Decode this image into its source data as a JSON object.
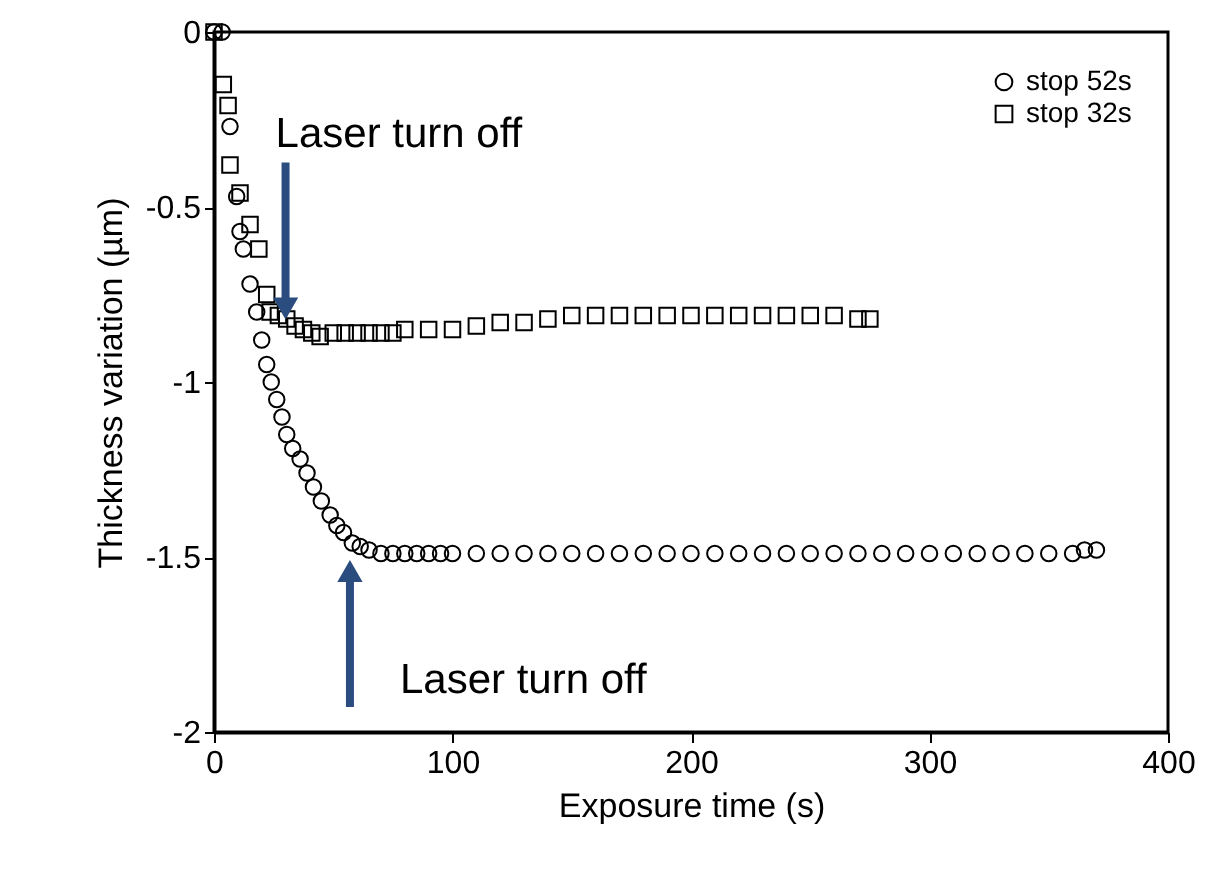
{
  "chart_data": {
    "type": "scatter",
    "xlabel": "Exposure time (s)",
    "ylabel": "Thickness variation (µm)",
    "xlim": [
      0,
      400
    ],
    "xticks": [
      0,
      100,
      200,
      300,
      400
    ],
    "ylim": [
      -2,
      0
    ],
    "yticks": [
      -2,
      -1.5,
      -1,
      -0.5,
      0
    ],
    "grid": false,
    "legend": "top right",
    "series": [
      {
        "name": "stop 52s",
        "color": "#000000",
        "marker": "circle",
        "x": [
          0,
          3.4,
          6.7,
          9.5,
          10.9,
          12.3,
          15.1,
          17.9,
          20,
          22.1,
          24,
          26.3,
          28.5,
          30.5,
          33,
          36.1,
          39,
          41.7,
          45,
          48.7,
          51.5,
          54.3,
          58,
          61.3,
          65,
          70,
          75,
          80,
          85,
          90,
          95,
          100,
          110,
          120,
          130,
          140,
          150,
          160,
          170,
          180,
          190,
          200,
          210,
          220,
          230,
          240,
          250,
          260,
          270,
          280,
          290,
          300,
          310,
          320,
          330,
          340,
          350,
          360,
          365,
          370
        ],
        "values": [
          0,
          0,
          -0.27,
          -0.47,
          -0.57,
          -0.62,
          -0.72,
          -0.8,
          -0.88,
          -0.95,
          -1.0,
          -1.05,
          -1.1,
          -1.15,
          -1.19,
          -1.22,
          -1.26,
          -1.3,
          -1.34,
          -1.38,
          -1.41,
          -1.43,
          -1.46,
          -1.47,
          -1.48,
          -1.49,
          -1.49,
          -1.49,
          -1.49,
          -1.49,
          -1.49,
          -1.49,
          -1.49,
          -1.49,
          -1.49,
          -1.49,
          -1.49,
          -1.49,
          -1.49,
          -1.49,
          -1.49,
          -1.49,
          -1.49,
          -1.49,
          -1.49,
          -1.49,
          -1.49,
          -1.49,
          -1.49,
          -1.49,
          -1.49,
          -1.49,
          -1.49,
          -1.49,
          -1.49,
          -1.49,
          -1.49,
          -1.49,
          -1.48,
          -1.48
        ]
      },
      {
        "name": "stop 32s",
        "color": "#000000",
        "marker": "square",
        "x": [
          0,
          3.9,
          5.9,
          6.7,
          10.9,
          15.1,
          18.8,
          22.1,
          23.5,
          27,
          30.5,
          34,
          37.5,
          41,
          44.5,
          50,
          55,
          60,
          65,
          70,
          75,
          80,
          90,
          100,
          110,
          120,
          130,
          140,
          150,
          160,
          170,
          180,
          190,
          200,
          210,
          220,
          230,
          240,
          250,
          260,
          270,
          275
        ],
        "values": [
          0,
          -0.15,
          -0.21,
          -0.38,
          -0.46,
          -0.55,
          -0.62,
          -0.75,
          -0.8,
          -0.81,
          -0.82,
          -0.84,
          -0.85,
          -0.86,
          -0.87,
          -0.86,
          -0.86,
          -0.86,
          -0.86,
          -0.86,
          -0.86,
          -0.85,
          -0.85,
          -0.85,
          -0.84,
          -0.83,
          -0.83,
          -0.82,
          -0.81,
          -0.81,
          -0.81,
          -0.81,
          -0.81,
          -0.81,
          -0.81,
          -0.81,
          -0.81,
          -0.81,
          -0.81,
          -0.81,
          -0.82,
          -0.82
        ]
      }
    ],
    "annotations": [
      {
        "text": "Laser turn off",
        "x": 30,
        "y": -0.83
      },
      {
        "text": "Laser turn off",
        "x": 57,
        "y": -1.5
      }
    ]
  }
}
